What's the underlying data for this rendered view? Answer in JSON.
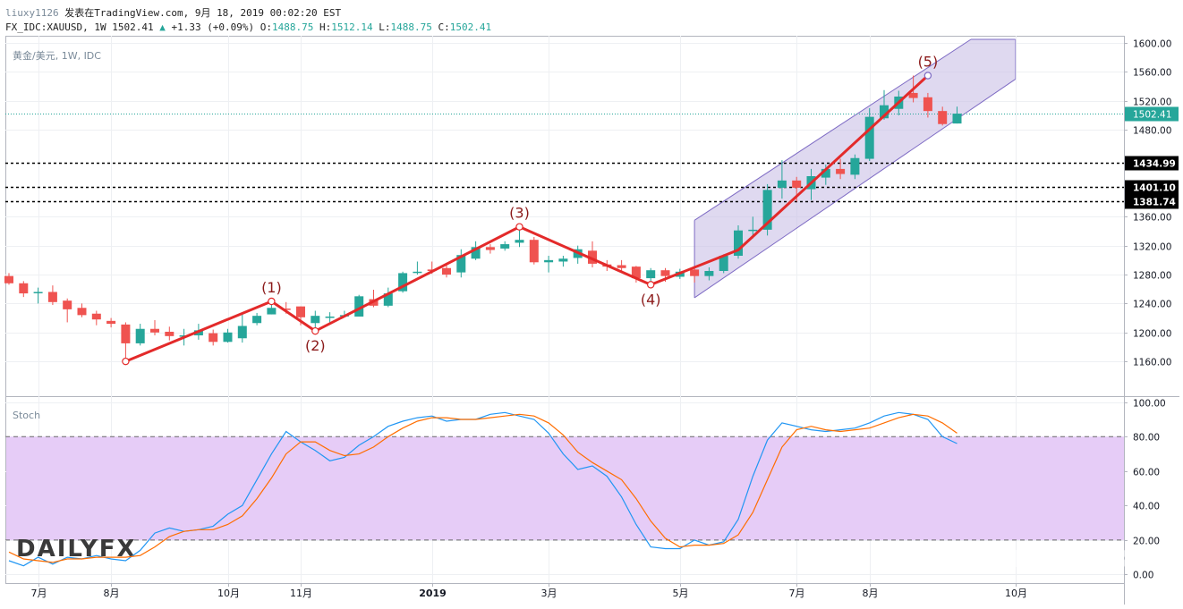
{
  "header": {
    "username": "liuxy1126",
    "published": "发表在TradingView.com, 9月 18, 2019 00:02:20 EST",
    "symbol_line": "FX_IDC:XAUUSD, 1W 1502.41",
    "change": "+1.33 (+0.09%)",
    "o_label": "O:",
    "o_value": "1488.75",
    "h_label": "H:",
    "h_value": "1512.14",
    "l_label": "L:",
    "l_value": "1488.75",
    "c_label": "C:",
    "c_value": "1502.41"
  },
  "price_pane": {
    "legend": "黄金/美元, 1W, IDC",
    "current_price_label": "1502.41",
    "level_labels": [
      "1434.99",
      "1401.10",
      "1381.74"
    ]
  },
  "stoch_pane": {
    "legend": "Stoch"
  },
  "watermark": {
    "left": "DAILYFX",
    "right": "DAILYFX"
  },
  "colors": {
    "bull": "#26a69a",
    "bear": "#ef5350",
    "wave": "#e32a2a",
    "wave_label": "#8b1a1a",
    "channel_fill": "#c9bfe6",
    "channel_edge": "#7e6bc4",
    "k_line": "#2196f3",
    "d_line": "#ff6d00",
    "stoch_band": "#e6ccf7"
  },
  "chart_data": [
    {
      "type": "candlestick",
      "title": "黄金/美元, 1W, IDC",
      "x_tick_labels": [
        "7月",
        "8月",
        "10月",
        "11月",
        "2019",
        "3月",
        "5月",
        "7月",
        "8月",
        "10月"
      ],
      "y_tick_labels": [
        "1600.00",
        "1560.00",
        "1520.00",
        "1480.00",
        "1360.00",
        "1320.00",
        "1280.00",
        "1240.00",
        "1200.00",
        "1160.00"
      ],
      "ylim": [
        1112,
        1610
      ],
      "candles": [
        {
          "o": 1278,
          "c": 1268,
          "h": 1282,
          "l": 1266
        },
        {
          "o": 1268,
          "c": 1254,
          "h": 1271,
          "l": 1249
        },
        {
          "o": 1255,
          "c": 1256,
          "h": 1262,
          "l": 1240
        },
        {
          "o": 1256,
          "c": 1242,
          "h": 1265,
          "l": 1238
        },
        {
          "o": 1244,
          "c": 1232,
          "h": 1247,
          "l": 1214
        },
        {
          "o": 1234,
          "c": 1224,
          "h": 1240,
          "l": 1221
        },
        {
          "o": 1226,
          "c": 1218,
          "h": 1230,
          "l": 1210
        },
        {
          "o": 1216,
          "c": 1212,
          "h": 1220,
          "l": 1207
        },
        {
          "o": 1211,
          "c": 1185,
          "h": 1214,
          "l": 1160
        },
        {
          "o": 1185,
          "c": 1205,
          "h": 1212,
          "l": 1182
        },
        {
          "o": 1205,
          "c": 1200,
          "h": 1217,
          "l": 1196
        },
        {
          "o": 1201,
          "c": 1195,
          "h": 1208,
          "l": 1189
        },
        {
          "o": 1195,
          "c": 1196,
          "h": 1205,
          "l": 1182
        },
        {
          "o": 1196,
          "c": 1203,
          "h": 1212,
          "l": 1190
        },
        {
          "o": 1199,
          "c": 1187,
          "h": 1204,
          "l": 1182
        },
        {
          "o": 1187,
          "c": 1200,
          "h": 1205,
          "l": 1186
        },
        {
          "o": 1192,
          "c": 1209,
          "h": 1226,
          "l": 1186
        },
        {
          "o": 1213,
          "c": 1223,
          "h": 1227,
          "l": 1210
        },
        {
          "o": 1225,
          "c": 1234,
          "h": 1243,
          "l": 1225
        },
        {
          "o": 1233,
          "c": 1232,
          "h": 1242,
          "l": 1226
        },
        {
          "o": 1236,
          "c": 1221,
          "h": 1236,
          "l": 1210
        },
        {
          "o": 1213,
          "c": 1223,
          "h": 1230,
          "l": 1202
        },
        {
          "o": 1221,
          "c": 1222,
          "h": 1228,
          "l": 1213
        },
        {
          "o": 1224,
          "c": 1224,
          "h": 1230,
          "l": 1221
        },
        {
          "o": 1222,
          "c": 1250,
          "h": 1252,
          "l": 1222
        },
        {
          "o": 1246,
          "c": 1237,
          "h": 1259,
          "l": 1235
        },
        {
          "o": 1237,
          "c": 1254,
          "h": 1262,
          "l": 1235
        },
        {
          "o": 1257,
          "c": 1282,
          "h": 1284,
          "l": 1255
        },
        {
          "o": 1283,
          "c": 1284,
          "h": 1298,
          "l": 1280
        },
        {
          "o": 1287,
          "c": 1285,
          "h": 1298,
          "l": 1281
        },
        {
          "o": 1289,
          "c": 1280,
          "h": 1293,
          "l": 1276
        },
        {
          "o": 1283,
          "c": 1307,
          "h": 1315,
          "l": 1276
        },
        {
          "o": 1302,
          "c": 1318,
          "h": 1326,
          "l": 1300
        },
        {
          "o": 1318,
          "c": 1314,
          "h": 1322,
          "l": 1309
        },
        {
          "o": 1316,
          "c": 1322,
          "h": 1326,
          "l": 1313
        },
        {
          "o": 1324,
          "c": 1328,
          "h": 1341,
          "l": 1318
        },
        {
          "o": 1328,
          "c": 1297,
          "h": 1332,
          "l": 1294
        },
        {
          "o": 1297,
          "c": 1300,
          "h": 1306,
          "l": 1283
        },
        {
          "o": 1298,
          "c": 1302,
          "h": 1306,
          "l": 1291
        },
        {
          "o": 1303,
          "c": 1315,
          "h": 1320,
          "l": 1295
        },
        {
          "o": 1313,
          "c": 1295,
          "h": 1326,
          "l": 1290
        },
        {
          "o": 1294,
          "c": 1291,
          "h": 1300,
          "l": 1285
        },
        {
          "o": 1293,
          "c": 1289,
          "h": 1300,
          "l": 1282
        },
        {
          "o": 1291,
          "c": 1275,
          "h": 1292,
          "l": 1269
        },
        {
          "o": 1275,
          "c": 1286,
          "h": 1289,
          "l": 1266
        },
        {
          "o": 1286,
          "c": 1278,
          "h": 1289,
          "l": 1270
        },
        {
          "o": 1277,
          "c": 1284,
          "h": 1288,
          "l": 1274
        },
        {
          "o": 1287,
          "c": 1278,
          "h": 1290,
          "l": 1269
        },
        {
          "o": 1278,
          "c": 1285,
          "h": 1290,
          "l": 1272
        },
        {
          "o": 1285,
          "c": 1306,
          "h": 1308,
          "l": 1282
        },
        {
          "o": 1306,
          "c": 1341,
          "h": 1348,
          "l": 1302
        },
        {
          "o": 1342,
          "c": 1342,
          "h": 1360,
          "l": 1330
        },
        {
          "o": 1342,
          "c": 1397,
          "h": 1405,
          "l": 1334
        },
        {
          "o": 1400,
          "c": 1410,
          "h": 1438,
          "l": 1385
        },
        {
          "o": 1410,
          "c": 1400,
          "h": 1415,
          "l": 1381
        },
        {
          "o": 1398,
          "c": 1416,
          "h": 1426,
          "l": 1383
        },
        {
          "o": 1414,
          "c": 1426,
          "h": 1432,
          "l": 1404
        },
        {
          "o": 1426,
          "c": 1419,
          "h": 1440,
          "l": 1412
        },
        {
          "o": 1418,
          "c": 1441,
          "h": 1446,
          "l": 1412
        },
        {
          "o": 1440,
          "c": 1498,
          "h": 1510,
          "l": 1437
        },
        {
          "o": 1496,
          "c": 1514,
          "h": 1535,
          "l": 1494
        },
        {
          "o": 1509,
          "c": 1526,
          "h": 1534,
          "l": 1500
        },
        {
          "o": 1531,
          "c": 1524,
          "h": 1555,
          "l": 1518
        },
        {
          "o": 1525,
          "c": 1506,
          "h": 1531,
          "l": 1497
        },
        {
          "o": 1506,
          "c": 1488,
          "h": 1512,
          "l": 1486
        },
        {
          "o": 1488.75,
          "c": 1502.41,
          "h": 1512.14,
          "l": 1488.75
        }
      ],
      "current_price": 1502.41,
      "horizontal_levels": [
        1434.99,
        1401.1,
        1381.74
      ],
      "wave_points": [
        {
          "label": "",
          "i": 8,
          "price": 1160
        },
        {
          "label": "(1)",
          "i": 18,
          "price": 1243
        },
        {
          "label": "(2)",
          "i": 21,
          "price": 1202
        },
        {
          "label": "(3)",
          "i": 35,
          "price": 1346
        },
        {
          "label": "(4)",
          "i": 44,
          "price": 1266
        },
        {
          "label": "",
          "i": 50,
          "price": 1314
        },
        {
          "label": "(5)",
          "i": 63,
          "price": 1555
        }
      ],
      "channel": {
        "lower_start": {
          "i": 47,
          "price": 1248
        },
        "lower_end": {
          "i": 69,
          "price": 1550
        },
        "upper_start": {
          "i": 47,
          "price": 1355
        },
        "upper_end": {
          "i": 69,
          "price": 1651
        },
        "right_edge_i": 69
      }
    },
    {
      "type": "line",
      "title": "Stoch",
      "y_tick_labels": [
        "100.00",
        "80.00",
        "60.00",
        "40.00",
        "20.00",
        "0.00"
      ],
      "ylim": [
        -5,
        103
      ],
      "band": [
        20,
        80
      ],
      "series": [
        {
          "key": "K",
          "values": [
            8,
            5,
            10,
            6,
            10,
            9,
            11,
            9,
            8,
            14,
            24,
            27,
            25,
            26,
            28,
            35,
            40,
            55,
            70,
            83,
            77,
            72,
            66,
            68,
            75,
            80,
            86,
            89,
            91,
            92,
            89,
            90,
            90,
            93,
            94,
            92,
            90,
            82,
            70,
            61,
            63,
            57,
            45,
            29,
            16,
            15,
            15,
            20,
            17,
            19,
            32,
            57,
            78,
            88,
            86,
            84,
            83,
            84,
            85,
            88,
            92,
            94,
            93,
            90,
            80,
            76
          ]
        },
        {
          "key": "D",
          "values": [
            13,
            9,
            8,
            7,
            9,
            9,
            10,
            10,
            10,
            11,
            16,
            22,
            25,
            26,
            26,
            29,
            34,
            44,
            56,
            70,
            77,
            77,
            72,
            69,
            70,
            74,
            80,
            85,
            89,
            91,
            91,
            90,
            90,
            91,
            92,
            93,
            92,
            88,
            81,
            71,
            65,
            60,
            55,
            44,
            31,
            21,
            16,
            17,
            17,
            18,
            23,
            36,
            55,
            74,
            84,
            86,
            84,
            83,
            84,
            85,
            88,
            91,
            93,
            92,
            88,
            82
          ]
        }
      ]
    }
  ]
}
